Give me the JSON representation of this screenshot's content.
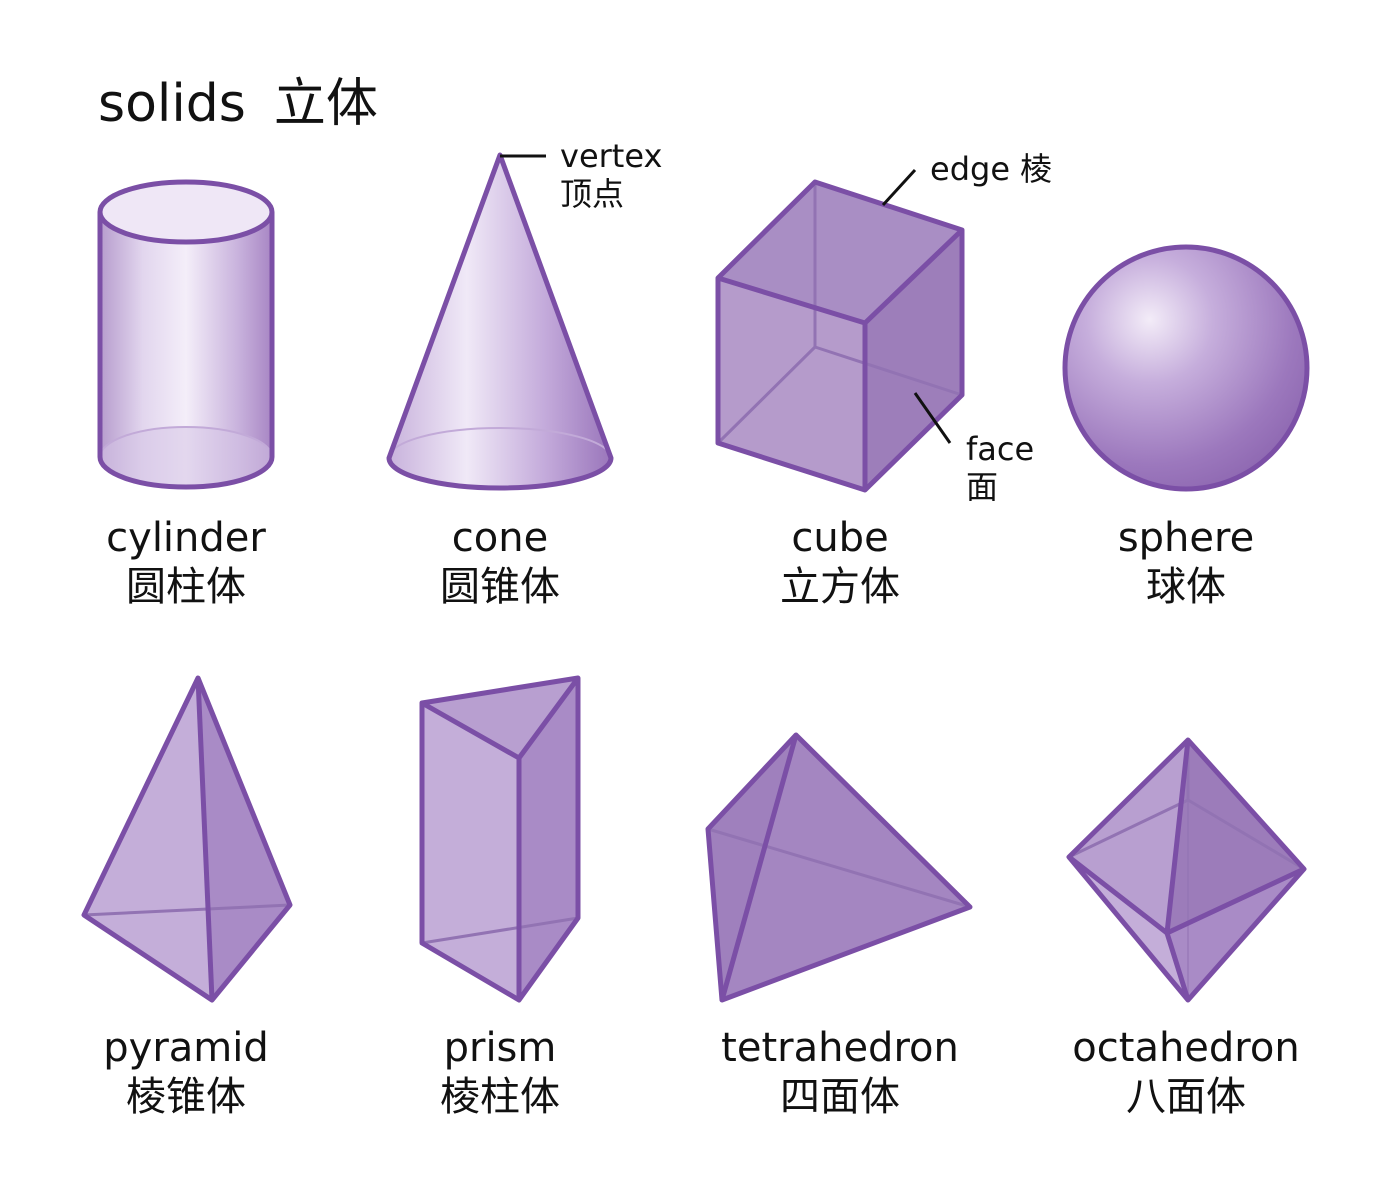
{
  "title": {
    "en": "solids",
    "zh": "立体"
  },
  "colors": {
    "stroke": "#7b4fa6",
    "face_light": "#c9b6dc",
    "face_mid": "#b296c9",
    "face_dark": "#9a78b8",
    "cylinder_fill": "#dccde9"
  },
  "solids": [
    {
      "name": "cylinder",
      "zh": "圆柱体"
    },
    {
      "name": "cone",
      "zh": "圆锥体"
    },
    {
      "name": "cube",
      "zh": "立方体"
    },
    {
      "name": "sphere",
      "zh": "球体"
    },
    {
      "name": "pyramid",
      "zh": "棱锥体"
    },
    {
      "name": "prism",
      "zh": "棱柱体"
    },
    {
      "name": "tetrahedron",
      "zh": "四面体"
    },
    {
      "name": "octahedron",
      "zh": "八面体"
    }
  ],
  "callouts": {
    "vertex": {
      "en": "vertex",
      "zh": "顶点"
    },
    "edge": {
      "en": "edge",
      "zh": "棱"
    },
    "face": {
      "en": "face",
      "zh": "面"
    }
  }
}
